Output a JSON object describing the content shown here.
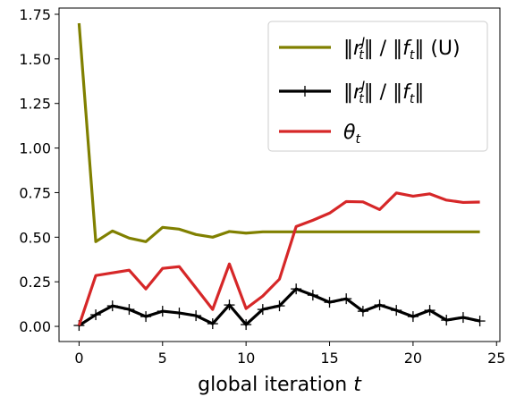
{
  "chart_data": {
    "type": "line",
    "xlabel": "global iteration t",
    "ylabel": "",
    "xlim": [
      -1.2,
      25.2
    ],
    "ylim": [
      -0.085,
      1.785
    ],
    "xticks": [
      0,
      5,
      10,
      15,
      20,
      25
    ],
    "xtick_labels": [
      "0",
      "5",
      "10",
      "15",
      "20",
      "25"
    ],
    "yticks": [
      0.0,
      0.25,
      0.5,
      0.75,
      1.0,
      1.25,
      1.5,
      1.75
    ],
    "ytick_labels": [
      "0.00",
      "0.25",
      "0.50",
      "0.75",
      "1.00",
      "1.25",
      "1.50",
      "1.75"
    ],
    "grid": false,
    "legend_position": "top-right",
    "x": [
      0,
      1,
      2,
      3,
      4,
      5,
      6,
      7,
      8,
      9,
      10,
      11,
      12,
      13,
      14,
      15,
      16,
      17,
      18,
      19,
      20,
      21,
      22,
      23,
      24
    ],
    "series": [
      {
        "name": "‖r_t^J‖ / ‖f_t‖ (U)",
        "color": "#808000",
        "marker": "none",
        "values": [
          1.7,
          0.475,
          0.535,
          0.495,
          0.475,
          0.555,
          0.545,
          0.515,
          0.5,
          0.532,
          0.523,
          0.53,
          0.53,
          0.53,
          0.53,
          0.53,
          0.53,
          0.53,
          0.53,
          0.53,
          0.53,
          0.53,
          0.53,
          0.53,
          0.53
        ]
      },
      {
        "name": "‖r_t^J‖ / ‖f_t‖",
        "color": "#000000",
        "marker": "plus",
        "values": [
          0.005,
          0.065,
          0.115,
          0.095,
          0.055,
          0.085,
          0.075,
          0.06,
          0.015,
          0.12,
          0.01,
          0.095,
          0.115,
          0.21,
          0.175,
          0.135,
          0.155,
          0.085,
          0.12,
          0.09,
          0.055,
          0.09,
          0.035,
          0.05,
          0.03
        ]
      },
      {
        "name": "θ_t",
        "color": "#d62728",
        "marker": "none",
        "values": [
          0.005,
          0.285,
          0.3,
          0.315,
          0.21,
          0.325,
          0.335,
          0.215,
          0.095,
          0.35,
          0.1,
          0.17,
          0.265,
          0.56,
          0.595,
          0.635,
          0.7,
          0.698,
          0.655,
          0.748,
          0.73,
          0.743,
          0.708,
          0.695,
          0.697
        ]
      }
    ],
    "legend": [
      {
        "base": "‖r",
        "sub": "t",
        "sup": "J",
        "rest": "‖ / ‖f",
        "sub2": "t",
        "tail": "‖ (U)"
      },
      {
        "base": "‖r",
        "sub": "t",
        "sup": "J",
        "rest": "‖ / ‖f",
        "sub2": "t",
        "tail": "‖"
      },
      {
        "base": "θ",
        "sub": "t",
        "sup": "",
        "rest": "",
        "sub2": "",
        "tail": ""
      }
    ]
  }
}
